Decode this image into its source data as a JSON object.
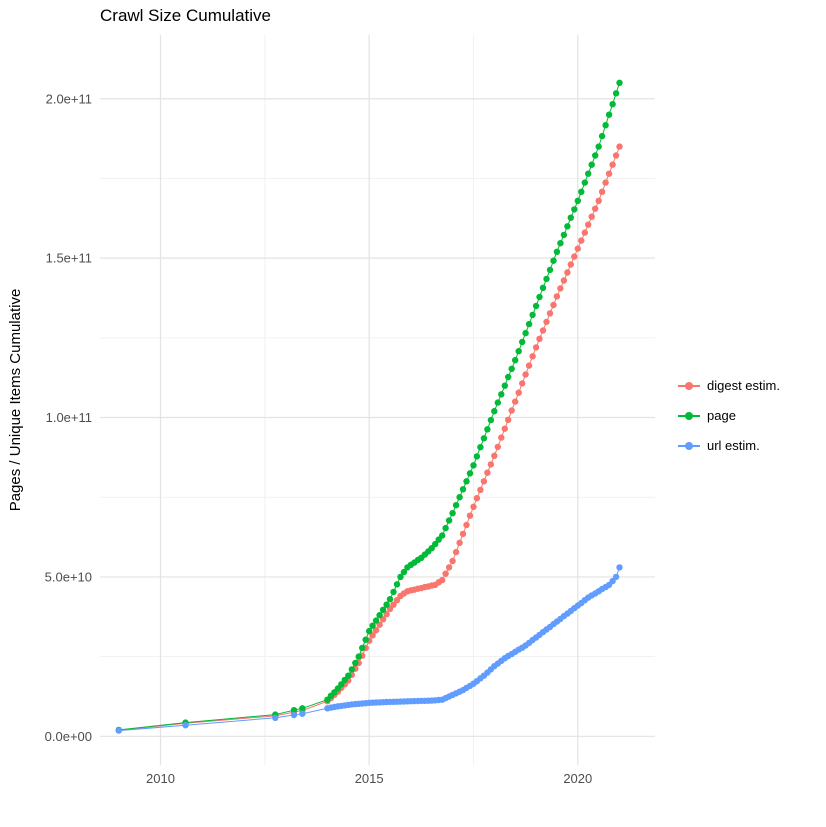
{
  "chart_data": {
    "type": "scatter",
    "title": "Crawl Size Cumulative",
    "xlabel": "",
    "ylabel": "Pages / Unique Items Cumulative",
    "grid": true,
    "legend_position": "right",
    "y_unit_multiplier": 1000000000.0,
    "xlim": [
      2008.55,
      2021.85
    ],
    "ylim_billions": [
      -9,
      220
    ],
    "x_ticks": [
      2010,
      2015,
      2020
    ],
    "x_tick_labels": [
      "2010",
      "2015",
      "2020"
    ],
    "x_minor_ticks": [
      2012.5,
      2017.5
    ],
    "y_ticks_billions": [
      0,
      50,
      100,
      150,
      200
    ],
    "y_tick_labels": [
      "0.0e+00",
      "5.0e+10",
      "1.0e+11",
      "1.5e+11",
      "2.0e+11"
    ],
    "y_minor_ticks_billions": [
      25,
      75,
      125,
      175
    ],
    "x": [
      2009.0,
      2010.6,
      2012.75,
      2013.2,
      2013.4,
      2014.0,
      2014.083,
      2014.167,
      2014.25,
      2014.333,
      2014.417,
      2014.5,
      2014.583,
      2014.667,
      2014.75,
      2014.833,
      2014.917,
      2015.0,
      2015.083,
      2015.167,
      2015.25,
      2015.333,
      2015.417,
      2015.5,
      2015.583,
      2015.667,
      2015.75,
      2015.833,
      2015.917,
      2016.0,
      2016.083,
      2016.167,
      2016.25,
      2016.333,
      2016.417,
      2016.5,
      2016.583,
      2016.667,
      2016.75,
      2016.833,
      2016.917,
      2017.0,
      2017.083,
      2017.167,
      2017.25,
      2017.333,
      2017.417,
      2017.5,
      2017.583,
      2017.667,
      2017.75,
      2017.833,
      2017.917,
      2018.0,
      2018.083,
      2018.167,
      2018.25,
      2018.333,
      2018.417,
      2018.5,
      2018.583,
      2018.667,
      2018.75,
      2018.833,
      2018.917,
      2019.0,
      2019.083,
      2019.167,
      2019.25,
      2019.333,
      2019.417,
      2019.5,
      2019.583,
      2019.667,
      2019.75,
      2019.833,
      2019.917,
      2020.0,
      2020.083,
      2020.167,
      2020.25,
      2020.333,
      2020.417,
      2020.5,
      2020.583,
      2020.667,
      2020.75,
      2020.833,
      2020.917,
      2021.0
    ],
    "series": [
      {
        "name": "digest estim.",
        "color": "#F8766D",
        "values_billions": [
          1.9,
          4.1,
          6.4,
          7.6,
          8.1,
          11.0,
          12.0,
          13.0,
          14.0,
          15.2,
          16.3,
          17.5,
          19.3,
          21.2,
          23.0,
          25.3,
          27.7,
          30.0,
          31.7,
          33.3,
          35.0,
          36.7,
          38.3,
          40.0,
          41.3,
          42.7,
          44.0,
          44.8,
          45.5,
          45.8,
          46.0,
          46.3,
          46.5,
          46.8,
          47.0,
          47.3,
          47.5,
          48.3,
          49.0,
          51.0,
          53.0,
          55.0,
          57.8,
          60.7,
          63.5,
          66.3,
          69.2,
          72.0,
          74.7,
          77.3,
          80.0,
          82.7,
          85.3,
          88.0,
          90.8,
          93.7,
          96.5,
          99.3,
          102.2,
          105.0,
          107.8,
          110.7,
          113.5,
          116.3,
          119.2,
          122.0,
          124.7,
          127.3,
          130.0,
          132.7,
          135.3,
          138.0,
          140.5,
          143.0,
          145.5,
          148.0,
          150.5,
          153.0,
          155.5,
          158.0,
          160.5,
          163.0,
          165.5,
          168.0,
          170.8,
          173.7,
          176.5,
          179.3,
          182.2,
          185.0
        ]
      },
      {
        "name": "page",
        "color": "#00BA38",
        "values_billions": [
          2.0,
          4.3,
          6.8,
          8.2,
          8.8,
          11.5,
          12.7,
          13.8,
          15.0,
          16.3,
          17.7,
          19.0,
          21.0,
          23.0,
          25.0,
          27.7,
          30.3,
          33.0,
          34.7,
          36.3,
          38.0,
          39.7,
          41.3,
          43.0,
          45.3,
          47.7,
          50.0,
          51.5,
          53.0,
          53.8,
          54.5,
          55.3,
          56.0,
          57.0,
          58.0,
          59.0,
          60.3,
          61.7,
          63.0,
          65.3,
          67.7,
          70.0,
          72.5,
          75.0,
          77.5,
          80.0,
          82.5,
          85.0,
          87.8,
          90.7,
          93.5,
          96.3,
          99.2,
          102.0,
          104.7,
          107.3,
          110.0,
          112.7,
          115.3,
          118.0,
          120.8,
          123.7,
          126.5,
          129.3,
          132.2,
          135.0,
          137.8,
          140.7,
          143.5,
          146.3,
          149.2,
          152.0,
          154.7,
          157.3,
          160.0,
          162.7,
          165.3,
          168.0,
          170.8,
          173.7,
          176.5,
          179.3,
          182.2,
          185.0,
          188.3,
          191.7,
          195.0,
          198.3,
          201.7,
          205.0
        ]
      },
      {
        "name": "url estim.",
        "color": "#619CFF",
        "values_billions": [
          1.8,
          3.5,
          5.8,
          6.7,
          7.1,
          8.8,
          9.0,
          9.2,
          9.4,
          9.55,
          9.7,
          9.85,
          10.0,
          10.1,
          10.2,
          10.3,
          10.4,
          10.5,
          10.55,
          10.6,
          10.65,
          10.7,
          10.75,
          10.8,
          10.83,
          10.87,
          10.9,
          10.93,
          10.97,
          11.0,
          11.03,
          11.07,
          11.1,
          11.13,
          11.17,
          11.2,
          11.3,
          11.4,
          11.5,
          12.0,
          12.5,
          13.0,
          13.5,
          14.0,
          14.5,
          15.2,
          15.8,
          16.5,
          17.3,
          18.2,
          19.0,
          20.0,
          21.0,
          22.0,
          22.8,
          23.7,
          24.5,
          25.2,
          25.8,
          26.5,
          27.2,
          27.8,
          28.5,
          29.3,
          30.2,
          31.0,
          31.8,
          32.7,
          33.5,
          34.3,
          35.2,
          36.0,
          36.8,
          37.7,
          38.5,
          39.3,
          40.2,
          41.0,
          41.8,
          42.7,
          43.5,
          44.2,
          44.8,
          45.5,
          46.2,
          46.8,
          47.5,
          48.7,
          50.0,
          53.0
        ]
      }
    ]
  }
}
